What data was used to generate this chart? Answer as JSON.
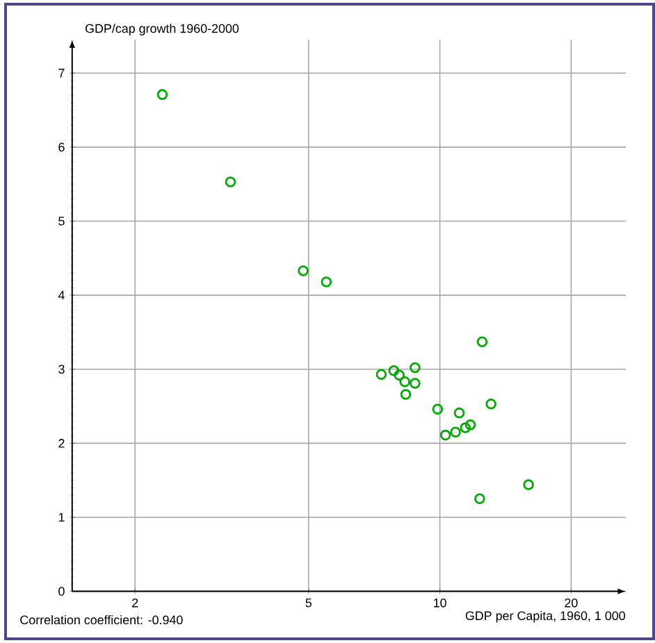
{
  "chart_data": {
    "type": "scatter",
    "ylabel": "GDP/cap growth 1960-2000",
    "xlabel": "GDP per Capita, 1960, 1 000",
    "annotations": [
      "Correlation coefficient: -0.940"
    ],
    "log": "x",
    "grid": true,
    "marker": "circle",
    "xlim": [
      1.435,
      26.7
    ],
    "ylim": [
      0,
      7.45
    ],
    "xticks": [
      2,
      5,
      10,
      20
    ],
    "yticks": [
      0,
      1,
      2,
      3,
      4,
      5,
      6,
      7
    ],
    "series": [
      {
        "color": "#00aa00",
        "x": [
          2.31,
          3.31,
          4.86,
          5.49,
          12.5,
          7.34,
          7.84,
          8.07,
          8.77,
          8.31,
          8.77,
          8.35,
          9.88,
          11.08,
          13.1,
          11.75,
          11.44,
          10.86,
          10.3,
          15.97,
          12.34
        ],
        "values": [
          6.71,
          5.53,
          4.33,
          4.18,
          3.37,
          2.93,
          2.98,
          2.92,
          3.02,
          2.83,
          2.81,
          2.66,
          2.46,
          2.41,
          2.53,
          2.25,
          2.21,
          2.15,
          2.11,
          1.44,
          1.25
        ]
      }
    ]
  }
}
